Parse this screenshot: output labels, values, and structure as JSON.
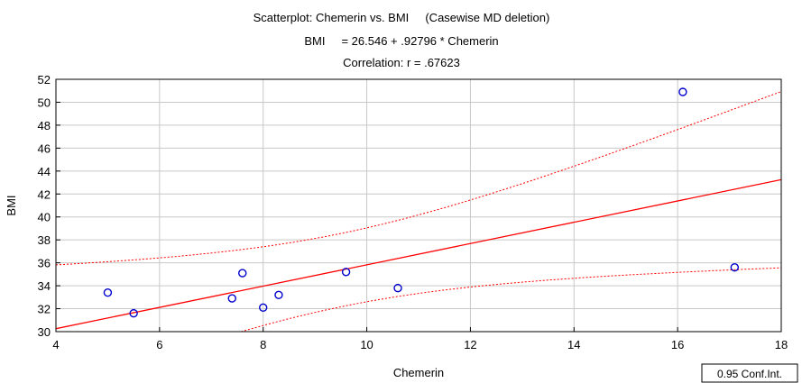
{
  "chart_data": {
    "type": "scatter",
    "title": "Scatterplot: Chemerin vs. BMI     (Casewise MD deletion)",
    "subtitle": [
      "BMI     = 26.546 + .92796 * Chemerin",
      "Correlation: r = .67623"
    ],
    "xlabel": "Chemerin",
    "ylabel": "BMI",
    "xlim": [
      4,
      18
    ],
    "ylim": [
      30,
      52
    ],
    "xticks": [
      4,
      6,
      8,
      10,
      12,
      14,
      16,
      18
    ],
    "yticks": [
      30,
      32,
      34,
      36,
      38,
      40,
      42,
      44,
      46,
      48,
      50,
      52
    ],
    "grid": true,
    "points": [
      {
        "x": 5.0,
        "y": 33.4
      },
      {
        "x": 5.5,
        "y": 31.6
      },
      {
        "x": 7.4,
        "y": 32.9
      },
      {
        "x": 7.6,
        "y": 35.1
      },
      {
        "x": 8.0,
        "y": 32.1
      },
      {
        "x": 8.3,
        "y": 33.2
      },
      {
        "x": 9.6,
        "y": 35.2
      },
      {
        "x": 10.6,
        "y": 33.8
      },
      {
        "x": 16.1,
        "y": 50.9
      },
      {
        "x": 17.1,
        "y": 35.6
      }
    ],
    "regression": {
      "intercept": 26.546,
      "slope": 0.92796
    },
    "legend": {
      "text": "0.95 Conf.Int.",
      "position": "bottom-right"
    },
    "colors": {
      "points": "#0000cc",
      "fit": "#ff0000",
      "grid": "#c8c8c8"
    }
  }
}
